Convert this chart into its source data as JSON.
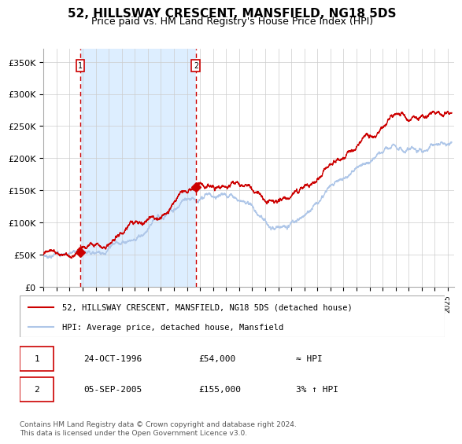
{
  "title": "52, HILLSWAY CRESCENT, MANSFIELD, NG18 5DS",
  "subtitle": "Price paid vs. HM Land Registry's House Price Index (HPI)",
  "sale1_date_num": 1996.82,
  "sale1_price": 54000,
  "sale1_label": "1",
  "sale2_date_num": 2005.68,
  "sale2_price": 155000,
  "sale2_label": "2",
  "xmin": 1994.0,
  "xmax": 2025.5,
  "ymin": 0,
  "ymax": 370000,
  "yticks": [
    0,
    50000,
    100000,
    150000,
    200000,
    250000,
    300000,
    350000
  ],
  "ytick_labels": [
    "£0",
    "£50K",
    "£100K",
    "£150K",
    "£200K",
    "£250K",
    "£300K",
    "£350K"
  ],
  "hpi_color": "#aec6e8",
  "price_color": "#cc0000",
  "dashed_line_color": "#cc0000",
  "shaded_region_color": "#ddeeff",
  "hatch_color": "#cccccc",
  "grid_color": "#cccccc",
  "bg_color": "#ffffff",
  "legend_label_price": "52, HILLSWAY CRESCENT, MANSFIELD, NG18 5DS (detached house)",
  "legend_label_hpi": "HPI: Average price, detached house, Mansfield",
  "table_row1": [
    "1",
    "24-OCT-1996",
    "£54,000",
    "≈ HPI"
  ],
  "table_row2": [
    "2",
    "05-SEP-2005",
    "£155,000",
    "3% ↑ HPI"
  ],
  "footer": "Contains HM Land Registry data © Crown copyright and database right 2024.\nThis data is licensed under the Open Government Licence v3.0."
}
